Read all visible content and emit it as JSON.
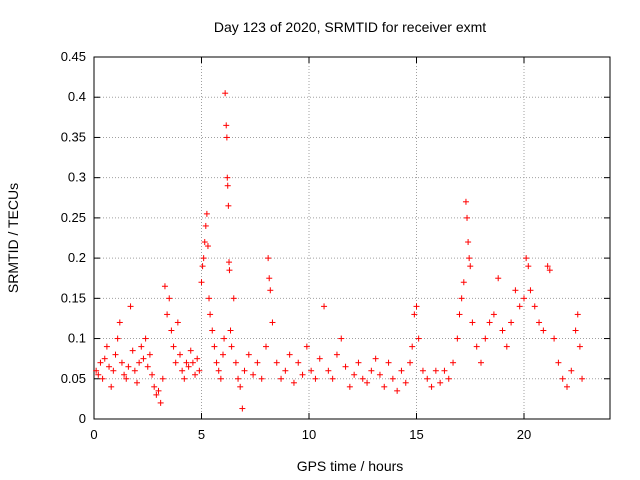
{
  "chart_data": {
    "type": "scatter",
    "title": "Day 123 of 2020, SRMTID for receiver exmt",
    "xlabel": "GPS time / hours",
    "ylabel": "SRMTID / TECUs",
    "xlim": [
      0,
      24
    ],
    "ylim": [
      0,
      0.45
    ],
    "xticks": [
      0,
      5,
      10,
      15,
      20
    ],
    "yticks": [
      0,
      0.05,
      0.1,
      0.15,
      0.2,
      0.25,
      0.3,
      0.35,
      0.4,
      0.45
    ],
    "xtick_labels": [
      "0",
      "5",
      "10",
      "15",
      "20"
    ],
    "ytick_labels": [
      "0",
      "0.05",
      "0.1",
      "0.15",
      "0.2",
      "0.25",
      "0.3",
      "0.35",
      "0.4",
      "0.45"
    ],
    "grid": true,
    "marker": "+",
    "color": "#ff0000",
    "series": [
      {
        "name": "SRMTID",
        "points": [
          [
            0.1,
            0.06
          ],
          [
            0.2,
            0.055
          ],
          [
            0.3,
            0.07
          ],
          [
            0.4,
            0.05
          ],
          [
            0.5,
            0.075
          ],
          [
            0.6,
            0.09
          ],
          [
            0.7,
            0.065
          ],
          [
            0.8,
            0.04
          ],
          [
            0.9,
            0.06
          ],
          [
            1.0,
            0.08
          ],
          [
            1.1,
            0.1
          ],
          [
            1.2,
            0.12
          ],
          [
            1.3,
            0.07
          ],
          [
            1.4,
            0.055
          ],
          [
            1.5,
            0.05
          ],
          [
            1.6,
            0.065
          ],
          [
            1.7,
            0.14
          ],
          [
            1.8,
            0.085
          ],
          [
            1.9,
            0.06
          ],
          [
            2.0,
            0.045
          ],
          [
            2.1,
            0.07
          ],
          [
            2.2,
            0.09
          ],
          [
            2.3,
            0.075
          ],
          [
            2.4,
            0.1
          ],
          [
            2.5,
            0.065
          ],
          [
            2.6,
            0.08
          ],
          [
            2.7,
            0.055
          ],
          [
            2.8,
            0.04
          ],
          [
            2.9,
            0.03
          ],
          [
            3.0,
            0.035
          ],
          [
            3.1,
            0.02
          ],
          [
            3.2,
            0.05
          ],
          [
            3.3,
            0.165
          ],
          [
            3.4,
            0.13
          ],
          [
            3.5,
            0.15
          ],
          [
            3.6,
            0.11
          ],
          [
            3.7,
            0.09
          ],
          [
            3.8,
            0.07
          ],
          [
            3.9,
            0.12
          ],
          [
            4.0,
            0.08
          ],
          [
            4.1,
            0.06
          ],
          [
            4.2,
            0.05
          ],
          [
            4.3,
            0.07
          ],
          [
            4.4,
            0.065
          ],
          [
            4.5,
            0.085
          ],
          [
            4.6,
            0.07
          ],
          [
            4.7,
            0.055
          ],
          [
            4.8,
            0.075
          ],
          [
            4.9,
            0.06
          ],
          [
            5.0,
            0.17
          ],
          [
            5.05,
            0.19
          ],
          [
            5.1,
            0.2
          ],
          [
            5.15,
            0.22
          ],
          [
            5.2,
            0.24
          ],
          [
            5.25,
            0.255
          ],
          [
            5.3,
            0.215
          ],
          [
            5.35,
            0.15
          ],
          [
            5.4,
            0.13
          ],
          [
            5.5,
            0.11
          ],
          [
            5.6,
            0.09
          ],
          [
            5.7,
            0.07
          ],
          [
            5.8,
            0.06
          ],
          [
            5.9,
            0.05
          ],
          [
            6.0,
            0.08
          ],
          [
            6.05,
            0.1
          ],
          [
            6.1,
            0.405
          ],
          [
            6.15,
            0.365
          ],
          [
            6.18,
            0.35
          ],
          [
            6.2,
            0.3
          ],
          [
            6.22,
            0.29
          ],
          [
            6.25,
            0.265
          ],
          [
            6.28,
            0.195
          ],
          [
            6.3,
            0.185
          ],
          [
            6.35,
            0.11
          ],
          [
            6.4,
            0.09
          ],
          [
            6.5,
            0.15
          ],
          [
            6.6,
            0.07
          ],
          [
            6.7,
            0.05
          ],
          [
            6.8,
            0.04
          ],
          [
            6.9,
            0.013
          ],
          [
            7.0,
            0.06
          ],
          [
            7.2,
            0.08
          ],
          [
            7.4,
            0.055
          ],
          [
            7.6,
            0.07
          ],
          [
            7.8,
            0.05
          ],
          [
            8.0,
            0.09
          ],
          [
            8.1,
            0.2
          ],
          [
            8.15,
            0.175
          ],
          [
            8.2,
            0.16
          ],
          [
            8.3,
            0.12
          ],
          [
            8.5,
            0.07
          ],
          [
            8.7,
            0.05
          ],
          [
            8.9,
            0.06
          ],
          [
            9.1,
            0.08
          ],
          [
            9.3,
            0.045
          ],
          [
            9.5,
            0.07
          ],
          [
            9.7,
            0.055
          ],
          [
            9.9,
            0.09
          ],
          [
            10.1,
            0.06
          ],
          [
            10.3,
            0.05
          ],
          [
            10.5,
            0.075
          ],
          [
            10.7,
            0.14
          ],
          [
            10.9,
            0.06
          ],
          [
            11.1,
            0.05
          ],
          [
            11.3,
            0.08
          ],
          [
            11.5,
            0.1
          ],
          [
            11.7,
            0.065
          ],
          [
            11.9,
            0.04
          ],
          [
            12.1,
            0.055
          ],
          [
            12.3,
            0.07
          ],
          [
            12.5,
            0.05
          ],
          [
            12.7,
            0.045
          ],
          [
            12.9,
            0.06
          ],
          [
            13.1,
            0.075
          ],
          [
            13.3,
            0.055
          ],
          [
            13.5,
            0.04
          ],
          [
            13.7,
            0.07
          ],
          [
            13.9,
            0.05
          ],
          [
            14.1,
            0.035
          ],
          [
            14.3,
            0.06
          ],
          [
            14.5,
            0.045
          ],
          [
            14.7,
            0.07
          ],
          [
            14.8,
            0.09
          ],
          [
            14.9,
            0.13
          ],
          [
            15.0,
            0.14
          ],
          [
            15.1,
            0.1
          ],
          [
            15.3,
            0.06
          ],
          [
            15.5,
            0.05
          ],
          [
            15.7,
            0.04
          ],
          [
            15.9,
            0.06
          ],
          [
            16.1,
            0.045
          ],
          [
            16.3,
            0.06
          ],
          [
            16.5,
            0.05
          ],
          [
            16.7,
            0.07
          ],
          [
            16.9,
            0.1
          ],
          [
            17.0,
            0.13
          ],
          [
            17.1,
            0.15
          ],
          [
            17.2,
            0.17
          ],
          [
            17.3,
            0.27
          ],
          [
            17.35,
            0.25
          ],
          [
            17.4,
            0.22
          ],
          [
            17.45,
            0.2
          ],
          [
            17.5,
            0.19
          ],
          [
            17.6,
            0.12
          ],
          [
            17.8,
            0.09
          ],
          [
            18.0,
            0.07
          ],
          [
            18.2,
            0.1
          ],
          [
            18.4,
            0.12
          ],
          [
            18.6,
            0.13
          ],
          [
            18.8,
            0.175
          ],
          [
            19.0,
            0.11
          ],
          [
            19.2,
            0.09
          ],
          [
            19.4,
            0.12
          ],
          [
            19.6,
            0.16
          ],
          [
            19.8,
            0.14
          ],
          [
            20.0,
            0.15
          ],
          [
            20.1,
            0.2
          ],
          [
            20.2,
            0.19
          ],
          [
            20.3,
            0.16
          ],
          [
            20.5,
            0.14
          ],
          [
            20.7,
            0.12
          ],
          [
            20.9,
            0.11
          ],
          [
            21.1,
            0.19
          ],
          [
            21.2,
            0.185
          ],
          [
            21.4,
            0.1
          ],
          [
            21.6,
            0.07
          ],
          [
            21.8,
            0.05
          ],
          [
            22.0,
            0.04
          ],
          [
            22.2,
            0.06
          ],
          [
            22.4,
            0.11
          ],
          [
            22.5,
            0.13
          ],
          [
            22.6,
            0.09
          ],
          [
            22.7,
            0.05
          ]
        ]
      }
    ]
  }
}
